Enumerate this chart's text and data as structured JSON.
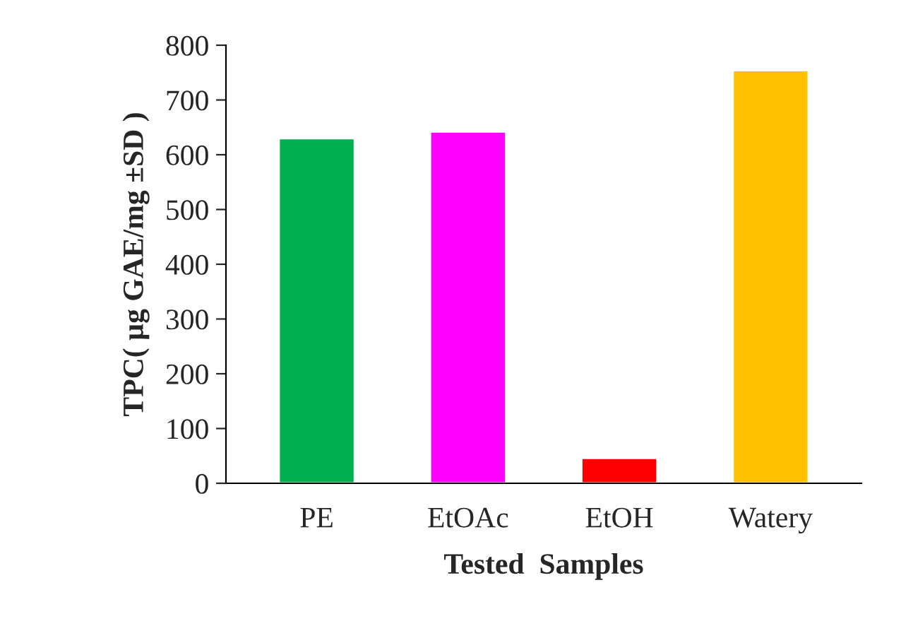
{
  "chart_data": {
    "type": "bar",
    "xlabel": "Tested  Samples",
    "ylabel": "TPC( µg GAE/mg ±SD )",
    "categories": [
      "PE",
      "EtOAc",
      "EtOH",
      "Watery"
    ],
    "values": [
      630,
      642,
      46,
      754
    ],
    "colors": [
      "#00b050",
      "#ff00ff",
      "#ff0000",
      "#ffc000"
    ],
    "ylim": [
      0,
      800
    ],
    "yticks": [
      0,
      100,
      200,
      300,
      400,
      500,
      600,
      700,
      800
    ],
    "grid": false
  }
}
